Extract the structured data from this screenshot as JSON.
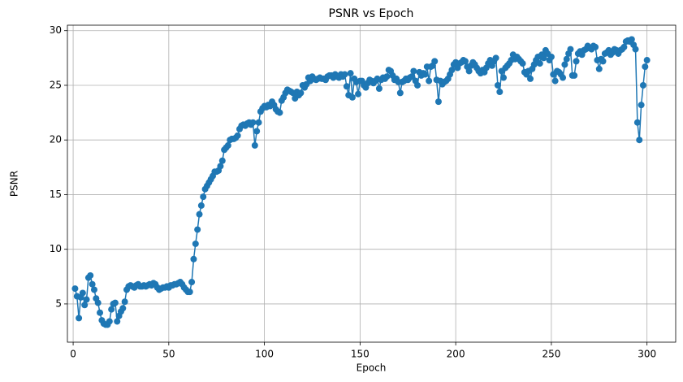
{
  "chart_data": {
    "type": "line",
    "title": "PSNR vs Epoch",
    "x_label": "Epoch",
    "y_label": "PSNR",
    "x": [
      1,
      2,
      3,
      4,
      5,
      6,
      7,
      8,
      9,
      10,
      11,
      12,
      13,
      14,
      15,
      16,
      17,
      18,
      19,
      20,
      21,
      22,
      23,
      24,
      25,
      26,
      27,
      28,
      29,
      30,
      31,
      32,
      33,
      34,
      35,
      36,
      37,
      38,
      39,
      40,
      41,
      42,
      43,
      44,
      45,
      46,
      47,
      48,
      49,
      50,
      51,
      52,
      53,
      54,
      55,
      56,
      57,
      58,
      59,
      60,
      61,
      62,
      63,
      64,
      65,
      66,
      67,
      68,
      69,
      70,
      71,
      72,
      73,
      74,
      75,
      76,
      77,
      78,
      79,
      80,
      81,
      82,
      83,
      84,
      85,
      86,
      87,
      88,
      89,
      90,
      91,
      92,
      93,
      94,
      95,
      96,
      97,
      98,
      99,
      100,
      101,
      102,
      103,
      104,
      105,
      106,
      107,
      108,
      109,
      110,
      111,
      112,
      113,
      114,
      115,
      116,
      117,
      118,
      119,
      120,
      121,
      122,
      123,
      124,
      125,
      126,
      127,
      128,
      129,
      130,
      131,
      132,
      133,
      134,
      135,
      136,
      137,
      138,
      139,
      140,
      141,
      142,
      143,
      144,
      145,
      146,
      147,
      148,
      149,
      150,
      151,
      152,
      153,
      154,
      155,
      156,
      157,
      158,
      159,
      160,
      161,
      162,
      163,
      164,
      165,
      166,
      167,
      168,
      169,
      170,
      171,
      172,
      173,
      174,
      175,
      176,
      177,
      178,
      179,
      180,
      181,
      182,
      183,
      184,
      185,
      186,
      187,
      188,
      189,
      190,
      191,
      192,
      193,
      194,
      195,
      196,
      197,
      198,
      199,
      200,
      201,
      202,
      203,
      204,
      205,
      206,
      207,
      208,
      209,
      210,
      211,
      212,
      213,
      214,
      215,
      216,
      217,
      218,
      219,
      220,
      221,
      222,
      223,
      224,
      225,
      226,
      227,
      228,
      229,
      230,
      231,
      232,
      233,
      234,
      235,
      236,
      237,
      238,
      239,
      240,
      241,
      242,
      243,
      244,
      245,
      246,
      247,
      248,
      249,
      250,
      251,
      252,
      253,
      254,
      255,
      256,
      257,
      258,
      259,
      260,
      261,
      262,
      263,
      264,
      265,
      266,
      267,
      268,
      269,
      270,
      271,
      272,
      273,
      274,
      275,
      276,
      277,
      278,
      279,
      280,
      281,
      282,
      283,
      284,
      285,
      286,
      287,
      288,
      289,
      290,
      291,
      292,
      293,
      294,
      295,
      296,
      297,
      298,
      299,
      300
    ],
    "series": [
      {
        "name": "PSNR",
        "color": "#1f77b4",
        "values": [
          6.4,
          5.7,
          3.7,
          5.6,
          6.0,
          4.9,
          5.4,
          7.4,
          7.6,
          6.8,
          6.3,
          5.5,
          5.1,
          4.2,
          3.5,
          3.2,
          3.1,
          3.1,
          3.4,
          4.5,
          5.0,
          5.1,
          3.4,
          3.9,
          4.3,
          4.6,
          5.2,
          6.3,
          6.6,
          6.7,
          6.6,
          6.5,
          6.7,
          6.8,
          6.6,
          6.6,
          6.7,
          6.6,
          6.7,
          6.8,
          6.7,
          6.9,
          6.8,
          6.5,
          6.3,
          6.4,
          6.5,
          6.5,
          6.6,
          6.5,
          6.7,
          6.7,
          6.8,
          6.8,
          6.9,
          7.0,
          6.8,
          6.5,
          6.3,
          6.1,
          6.1,
          7.0,
          9.1,
          10.5,
          11.8,
          13.2,
          14.0,
          14.8,
          15.5,
          15.8,
          16.1,
          16.4,
          16.7,
          17.1,
          17.1,
          17.2,
          17.6,
          18.1,
          19.1,
          19.3,
          19.5,
          20.0,
          20.1,
          20.1,
          20.2,
          20.4,
          21.0,
          21.3,
          21.4,
          21.3,
          21.5,
          21.6,
          21.4,
          21.6,
          19.5,
          20.8,
          21.6,
          22.6,
          22.9,
          23.1,
          23.0,
          23.2,
          23.1,
          23.5,
          23.2,
          22.8,
          22.6,
          22.5,
          23.6,
          23.9,
          24.3,
          24.6,
          24.5,
          24.4,
          24.3,
          23.8,
          24.4,
          24.1,
          24.3,
          25.0,
          24.8,
          25.1,
          25.7,
          25.4,
          25.8,
          25.6,
          25.5,
          25.6,
          25.7,
          25.6,
          25.6,
          25.5,
          25.8,
          25.9,
          25.9,
          25.7,
          26.0,
          25.8,
          25.7,
          26.0,
          25.8,
          26.0,
          24.9,
          24.1,
          26.1,
          23.9,
          25.6,
          25.3,
          24.2,
          25.4,
          25.4,
          25.0,
          24.8,
          25.2,
          25.5,
          25.4,
          25.2,
          25.4,
          25.6,
          24.7,
          25.5,
          25.7,
          25.6,
          25.8,
          26.4,
          26.3,
          25.9,
          25.5,
          25.6,
          25.3,
          24.3,
          25.3,
          25.4,
          25.6,
          25.5,
          25.7,
          25.8,
          26.3,
          25.4,
          25.0,
          26.2,
          25.9,
          26.1,
          26.0,
          26.7,
          25.4,
          26.7,
          26.8,
          27.2,
          25.5,
          23.5,
          25.4,
          25.1,
          25.3,
          25.4,
          25.6,
          26.0,
          26.4,
          26.9,
          27.1,
          26.6,
          27.0,
          27.1,
          27.3,
          27.2,
          26.7,
          26.3,
          26.8,
          27.1,
          26.9,
          26.6,
          26.3,
          26.1,
          26.4,
          26.2,
          26.6,
          27.0,
          27.3,
          26.8,
          27.2,
          27.5,
          25.0,
          24.4,
          26.3,
          25.7,
          26.6,
          26.8,
          27.0,
          27.3,
          27.8,
          27.4,
          27.6,
          27.4,
          27.2,
          27.0,
          26.2,
          26.0,
          26.3,
          25.6,
          26.5,
          26.9,
          27.3,
          27.6,
          27.0,
          27.8,
          27.5,
          28.2,
          27.9,
          27.3,
          27.6,
          26.0,
          25.4,
          26.3,
          26.2,
          26.0,
          25.7,
          26.9,
          27.4,
          27.9,
          28.3,
          25.9,
          25.9,
          27.2,
          27.9,
          28.1,
          27.8,
          28.2,
          28.3,
          28.6,
          28.4,
          28.3,
          28.6,
          28.5,
          27.3,
          26.5,
          27.4,
          27.2,
          27.9,
          28.0,
          28.2,
          27.8,
          28.0,
          28.3,
          28.2,
          27.9,
          28.2,
          28.3,
          28.5,
          29.0,
          29.1,
          29.0,
          29.2,
          28.7,
          28.3,
          21.6,
          20.0,
          23.2,
          25.0,
          26.7,
          27.3
        ]
      }
    ],
    "xlim": [
      -3,
      315
    ],
    "ylim": [
      1.5,
      30.5
    ],
    "xticks": [
      0,
      50,
      100,
      150,
      200,
      250,
      300
    ],
    "yticks": [
      5,
      10,
      15,
      20,
      25,
      30
    ],
    "grid": true,
    "markers": true
  }
}
